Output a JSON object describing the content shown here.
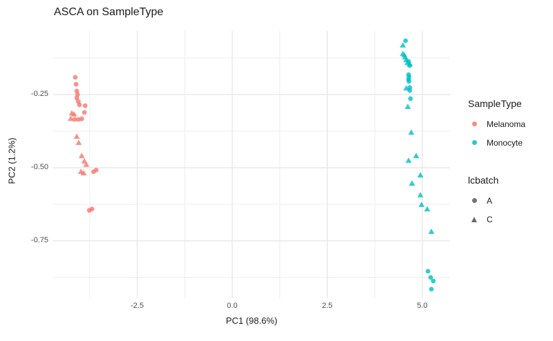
{
  "page": {
    "title": "ASCA on SampleType"
  },
  "chart_data": {
    "type": "scatter",
    "title": "ASCA on SampleType",
    "xlabel": "PC1 (98.6%)",
    "ylabel": "PC2 (1.2%)",
    "xlim": [
      -4.71,
      5.73
    ],
    "ylim": [
      -0.946,
      -0.033
    ],
    "grid": true,
    "legend_position": "right",
    "x_ticks": {
      "values": [
        -2.5,
        0.0,
        2.5,
        5.0
      ],
      "labels": [
        "-2.5",
        "0.0",
        "2.5",
        "5.0"
      ]
    },
    "x_minor": [
      -3.75,
      -1.25,
      1.25,
      3.75
    ],
    "y_ticks": {
      "values": [
        -0.25,
        -0.5,
        -0.75
      ],
      "labels": [
        "-0.25",
        "-0.50",
        "-0.75"
      ]
    },
    "y_minor": [
      -0.125,
      -0.375,
      -0.625,
      -0.875
    ],
    "shape_key": {
      "circle": "A",
      "triangle": "C"
    },
    "series": [
      {
        "name": "Melanoma",
        "color": "#F8766D",
        "points": [
          [
            -4.13,
            -0.191,
            "A"
          ],
          [
            -4.11,
            -0.215,
            "A"
          ],
          [
            -4.09,
            -0.238,
            "A"
          ],
          [
            -4.07,
            -0.25,
            "A"
          ],
          [
            -4.09,
            -0.262,
            "A"
          ],
          [
            -4.05,
            -0.274,
            "A"
          ],
          [
            -4.02,
            -0.285,
            "A"
          ],
          [
            -3.87,
            -0.288,
            "A"
          ],
          [
            -3.89,
            -0.311,
            "A"
          ],
          [
            -4.15,
            -0.335,
            "A"
          ],
          [
            -4.05,
            -0.335,
            "A"
          ],
          [
            -3.96,
            -0.333,
            "A"
          ],
          [
            -3.65,
            -0.514,
            "A"
          ],
          [
            -3.58,
            -0.508,
            "A"
          ],
          [
            -3.76,
            -0.646,
            "A"
          ],
          [
            -3.69,
            -0.641,
            "A"
          ],
          [
            -4.22,
            -0.314,
            "C"
          ],
          [
            -4.16,
            -0.318,
            "C"
          ],
          [
            -4.25,
            -0.333,
            "C"
          ],
          [
            -4.09,
            -0.394,
            "C"
          ],
          [
            -4.04,
            -0.415,
            "C"
          ],
          [
            -3.96,
            -0.46,
            "C"
          ],
          [
            -3.89,
            -0.478,
            "C"
          ],
          [
            -3.84,
            -0.49,
            "C"
          ],
          [
            -3.98,
            -0.514,
            "C"
          ],
          [
            -3.91,
            -0.519,
            "C"
          ]
        ]
      },
      {
        "name": "Monocyte",
        "color": "#00BFC4",
        "points": [
          [
            4.56,
            -0.066,
            "A"
          ],
          [
            4.64,
            -0.137,
            "A"
          ],
          [
            4.67,
            -0.151,
            "A"
          ],
          [
            4.64,
            -0.182,
            "A"
          ],
          [
            4.65,
            -0.19,
            "A"
          ],
          [
            4.64,
            -0.198,
            "A"
          ],
          [
            4.65,
            -0.205,
            "A"
          ],
          [
            4.67,
            -0.226,
            "A"
          ],
          [
            4.67,
            -0.236,
            "A"
          ],
          [
            4.69,
            -0.264,
            "A"
          ],
          [
            5.15,
            -0.854,
            "A"
          ],
          [
            5.22,
            -0.875,
            "A"
          ],
          [
            5.29,
            -0.887,
            "A"
          ],
          [
            5.24,
            -0.915,
            "A"
          ],
          [
            4.49,
            -0.082,
            "C"
          ],
          [
            4.49,
            -0.111,
            "C"
          ],
          [
            4.53,
            -0.116,
            "C"
          ],
          [
            4.55,
            -0.123,
            "C"
          ],
          [
            4.58,
            -0.132,
            "C"
          ],
          [
            4.61,
            -0.142,
            "C"
          ],
          [
            4.67,
            -0.146,
            "C"
          ],
          [
            4.58,
            -0.229,
            "C"
          ],
          [
            4.62,
            -0.292,
            "C"
          ],
          [
            4.71,
            -0.38,
            "C"
          ],
          [
            4.64,
            -0.476,
            "C"
          ],
          [
            4.84,
            -0.46,
            "C"
          ],
          [
            4.95,
            -0.526,
            "C"
          ],
          [
            4.73,
            -0.554,
            "C"
          ],
          [
            4.95,
            -0.594,
            "C"
          ],
          [
            4.98,
            -0.627,
            "C"
          ],
          [
            5.13,
            -0.642,
            "C"
          ],
          [
            5.24,
            -0.719,
            "C"
          ]
        ]
      }
    ]
  },
  "legend": {
    "sampletype": {
      "title": "SampleType",
      "items": [
        {
          "label": "Melanoma",
          "color": "#F8766D",
          "shape": "circle"
        },
        {
          "label": "Monocyte",
          "color": "#00BFC4",
          "shape": "circle"
        }
      ]
    },
    "lcbatch": {
      "title": "lcbatch",
      "marker_color": "#595959",
      "items": [
        {
          "label": "A",
          "shape": "circle"
        },
        {
          "label": "C",
          "shape": "triangle"
        }
      ]
    }
  },
  "colors": {
    "grid_major": "#e2e2e2",
    "grid_minor": "#eeeeee",
    "tick_text": "#4d4d4d",
    "point_opacity": 0.8
  }
}
